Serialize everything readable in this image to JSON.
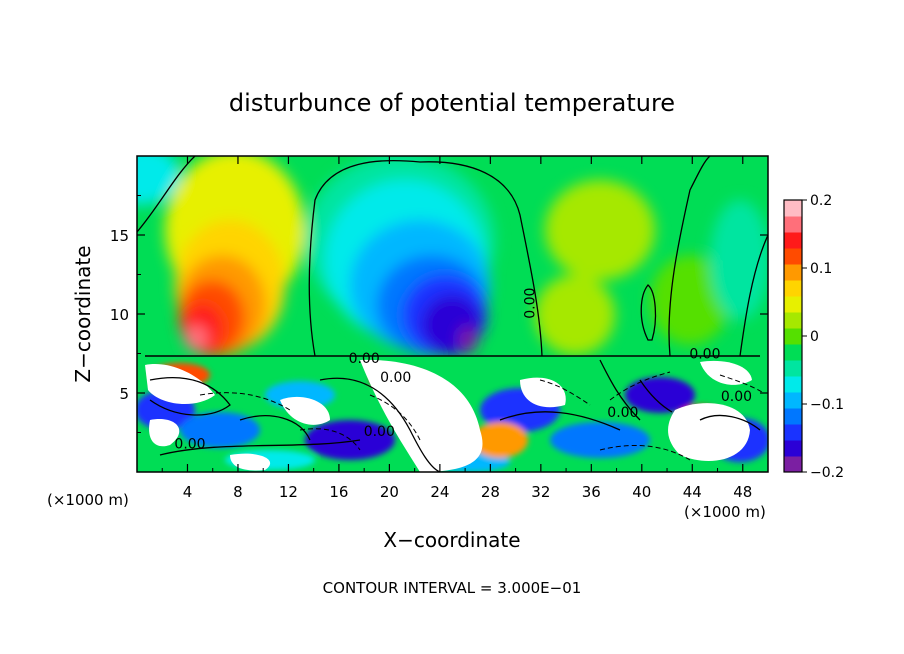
{
  "chart_data": {
    "type": "heatmap",
    "title": "disturbunce of potential temperature",
    "xlabel": "X−coordinate",
    "ylabel": "Z−coordinate",
    "x_unit_left": "(×1000 m)",
    "x_unit_right": "(×1000 m)",
    "footer": "CONTOUR INTERVAL = 3.000E−01",
    "xlim": [
      0,
      50
    ],
    "ylim": [
      0,
      20
    ],
    "x_ticks": [
      4,
      8,
      12,
      16,
      20,
      24,
      28,
      32,
      36,
      40,
      44,
      48
    ],
    "y_ticks": [
      5,
      10,
      15
    ],
    "colorbar": {
      "range": [
        -0.2,
        0.2
      ],
      "ticks": [
        0.2,
        0.1,
        0,
        -0.1,
        -0.2
      ],
      "tick_labels": [
        "0.2",
        "0.1",
        "0",
        "−0.1",
        "−0.2"
      ],
      "colors": [
        "#7b1fa2",
        "#2b00d6",
        "#1a33ff",
        "#0077ff",
        "#00b7ff",
        "#00eaea",
        "#00e5a0",
        "#00dd55",
        "#55e000",
        "#a6e800",
        "#e7f000",
        "#ffd400",
        "#ff9900",
        "#ff4b00",
        "#ff1a1a",
        "#ff6f7a",
        "#ffbcc4"
      ]
    },
    "contour_labels": [
      {
        "text": "0.00",
        "x": 18,
        "y": 7.2
      },
      {
        "text": "0.00",
        "x": 20.5,
        "y": 6.0
      },
      {
        "text": "0.00",
        "x": 31.5,
        "y": 11.0
      },
      {
        "text": "0.00",
        "x": 45.0,
        "y": 7.5
      },
      {
        "text": "0.00",
        "x": 47.5,
        "y": 4.8
      },
      {
        "text": "0.00",
        "x": 19.2,
        "y": 2.6
      },
      {
        "text": "0.00",
        "x": 4.2,
        "y": 1.8
      },
      {
        "text": "0.00",
        "x": 38.5,
        "y": 3.8
      }
    ]
  }
}
